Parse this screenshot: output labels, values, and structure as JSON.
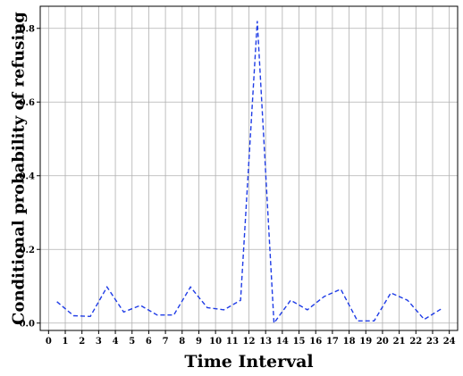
{
  "chart_data": {
    "type": "line",
    "title": "",
    "xlabel": "Time Interval",
    "ylabel": "Conditional probability of refusing",
    "xlim": [
      -0.5,
      24.5
    ],
    "ylim": [
      -0.02,
      0.86
    ],
    "grid": true,
    "legend": "none",
    "x_ticks": [
      0,
      1,
      2,
      3,
      4,
      5,
      6,
      7,
      8,
      9,
      10,
      11,
      12,
      13,
      14,
      15,
      16,
      17,
      18,
      19,
      20,
      21,
      22,
      23,
      24
    ],
    "x_tick_labels": [
      "0",
      "1",
      "2",
      "3",
      "4",
      "5",
      "6",
      "7",
      "8",
      "9",
      "10",
      "11",
      "12",
      "13",
      "14",
      "15",
      "16",
      "17",
      "18",
      "19",
      "20",
      "21",
      "22",
      "23",
      "24"
    ],
    "y_ticks": [
      0.0,
      0.2,
      0.4,
      0.6,
      0.8
    ],
    "y_tick_labels": [
      "0.0",
      "0.2",
      "0.4",
      "0.6",
      "0.8"
    ],
    "series": [
      {
        "style": "dashed",
        "color": "#1f3ce6",
        "x": [
          0.5,
          1.5,
          2.5,
          3.5,
          4.5,
          5.5,
          6.5,
          7.5,
          8.5,
          9.5,
          10.5,
          11.5,
          12.5,
          13.5,
          14.5,
          15.5,
          16.5,
          17.5,
          18.5,
          19.5,
          20.5,
          21.5,
          22.5,
          23.5
        ],
        "y": [
          0.058,
          0.02,
          0.018,
          0.098,
          0.03,
          0.048,
          0.022,
          0.022,
          0.098,
          0.042,
          0.036,
          0.062,
          0.82,
          0.0,
          0.062,
          0.036,
          0.072,
          0.092,
          0.006,
          0.006,
          0.082,
          0.062,
          0.01,
          0.038
        ]
      }
    ]
  }
}
